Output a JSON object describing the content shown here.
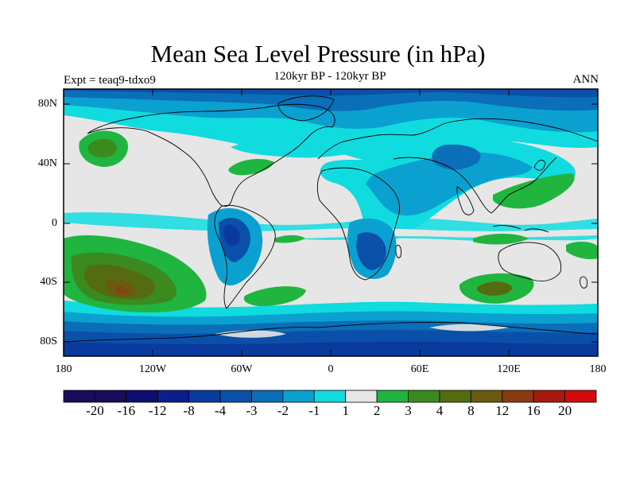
{
  "title": "Mean Sea Level Pressure (in hPa)",
  "subtitle": "120kyr BP - 120kyr BP",
  "left_label": "Expt = teaq9-tdxo9",
  "right_label": "ANN",
  "y_ticks": [
    "80N",
    "40N",
    "0",
    "40S",
    "80S"
  ],
  "x_ticks": [
    "180",
    "120W",
    "60W",
    "0",
    "60E",
    "120E",
    "180"
  ],
  "colorbar": {
    "labels": [
      "-20",
      "-16",
      "-12",
      "-8",
      "-4",
      "-3",
      "-2",
      "-1",
      "1",
      "2",
      "3",
      "4",
      "8",
      "12",
      "16",
      "20"
    ],
    "colors": [
      "#1a0a5c",
      "#0d0f70",
      "#0a1f8c",
      "#0a3a9e",
      "#0a4fa8",
      "#0a6fb8",
      "#0aa0d0",
      "#10dce0",
      "#e6e6e6",
      "#1fb53f",
      "#3a8a1f",
      "#556b10",
      "#6b5a10",
      "#8c3a10",
      "#a81a10",
      "#d40a0a"
    ]
  },
  "map_colors": {
    "background": "#e6e6e6",
    "neutral": "#e6e6e6",
    "cyan": "#10dce0",
    "light_blue": "#0aa0d0",
    "blue": "#0a6fb8",
    "mid_blue": "#0a4fa8",
    "dark_blue": "#0a3a9e",
    "green": "#1fb53f",
    "dark_green": "#3a8a1f",
    "olive": "#556b10",
    "brown": "#6b5a10"
  }
}
